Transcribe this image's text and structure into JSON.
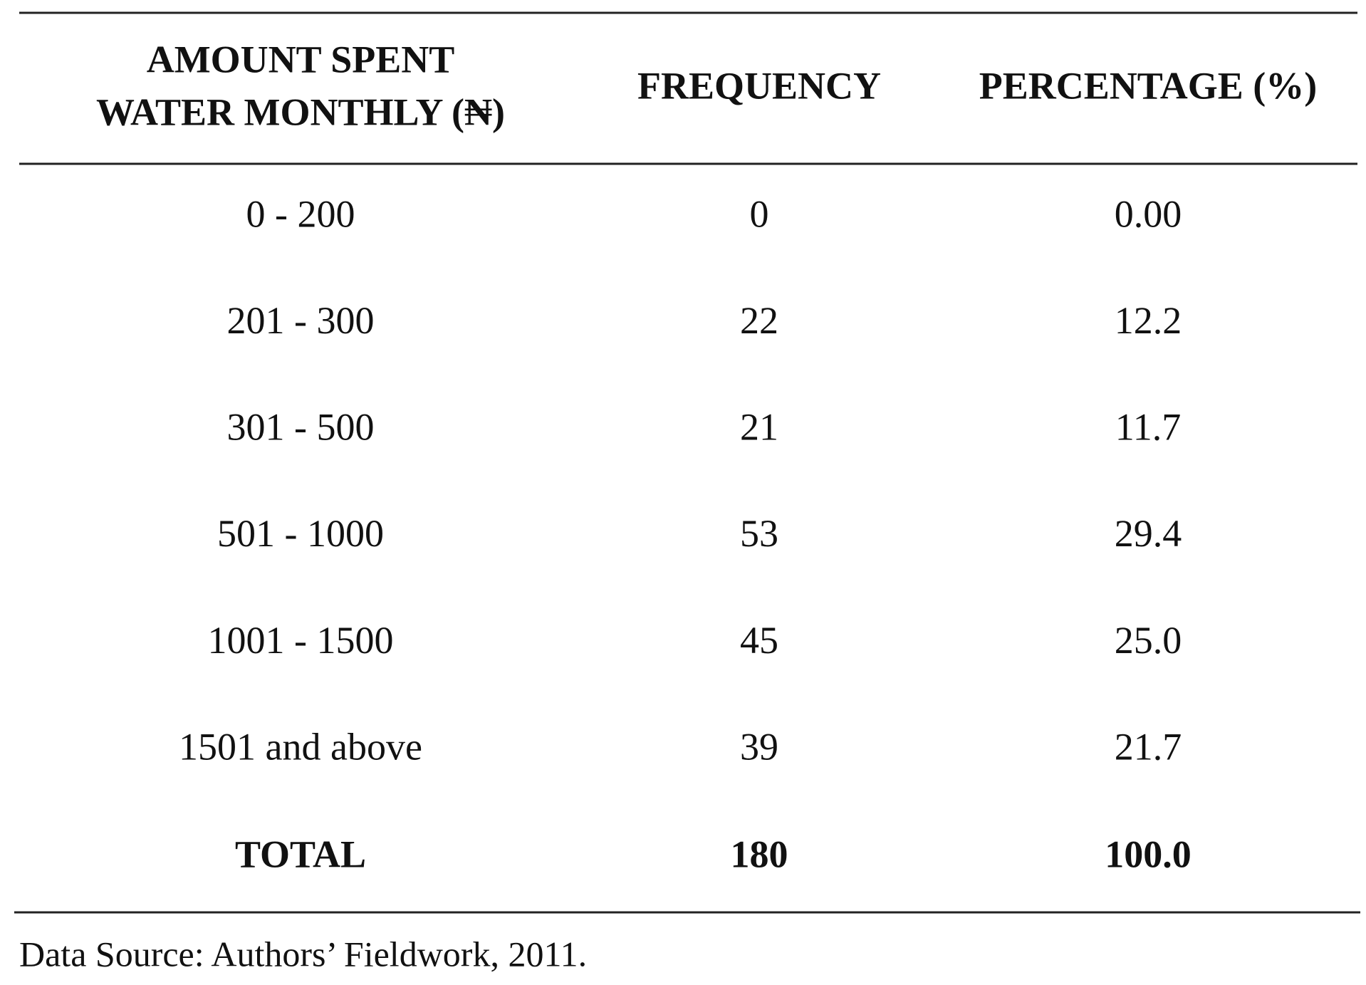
{
  "table": {
    "header": [
      [
        "AMOUNT SPENT",
        "WATER MONTHLY (₦)"
      ],
      "FREQUENCY",
      "PERCENTAGE (%)"
    ],
    "rows": [
      [
        "0 - 200",
        "0",
        "0.00"
      ],
      [
        "201 - 300",
        "22",
        "12.2"
      ],
      [
        "301 - 500",
        "21",
        "11.7"
      ],
      [
        "501 - 1000",
        "53",
        "29.4"
      ],
      [
        "1001 - 1500",
        "45",
        "25.0"
      ],
      [
        "1501 and above",
        "39",
        "21.7"
      ]
    ],
    "total": [
      "TOTAL",
      "180",
      "100.0"
    ]
  },
  "note": "Data Source: Authors’ Fieldwork, 2011."
}
